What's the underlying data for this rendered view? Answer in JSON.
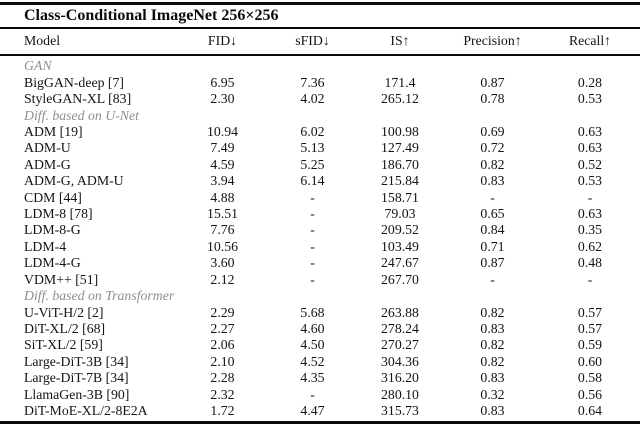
{
  "title": "Class-Conditional ImageNet 256×256",
  "columns": [
    "Model",
    "FID↓",
    "sFID↓",
    "IS↑",
    "Precision↑",
    "Recall↑"
  ],
  "rows": [
    {
      "type": "section",
      "label": "GAN"
    },
    {
      "type": "data",
      "model": "BigGAN-deep [7]",
      "values": [
        "6.95",
        "7.36",
        "171.4",
        "0.87",
        "0.28"
      ]
    },
    {
      "type": "data",
      "model": "StyleGAN-XL [83]",
      "values": [
        "2.30",
        "4.02",
        "265.12",
        "0.78",
        "0.53"
      ]
    },
    {
      "type": "section",
      "label": "Diff. based on U-Net"
    },
    {
      "type": "data",
      "model": "ADM [19]",
      "values": [
        "10.94",
        "6.02",
        "100.98",
        "0.69",
        "0.63"
      ]
    },
    {
      "type": "data",
      "model": "ADM-U",
      "values": [
        "7.49",
        "5.13",
        "127.49",
        "0.72",
        "0.63"
      ]
    },
    {
      "type": "data",
      "model": "ADM-G",
      "values": [
        "4.59",
        "5.25",
        "186.70",
        "0.82",
        "0.52"
      ]
    },
    {
      "type": "data",
      "model": "ADM-G, ADM-U",
      "values": [
        "3.94",
        "6.14",
        "215.84",
        "0.83",
        "0.53"
      ]
    },
    {
      "type": "data",
      "model": "CDM [44]",
      "values": [
        "4.88",
        "-",
        "158.71",
        "-",
        "-"
      ]
    },
    {
      "type": "data",
      "model": "LDM-8 [78]",
      "values": [
        "15.51",
        "-",
        "79.03",
        "0.65",
        "0.63"
      ]
    },
    {
      "type": "data",
      "model": "LDM-8-G",
      "values": [
        "7.76",
        "-",
        "209.52",
        "0.84",
        "0.35"
      ]
    },
    {
      "type": "data",
      "model": "LDM-4",
      "values": [
        "10.56",
        "-",
        "103.49",
        "0.71",
        "0.62"
      ]
    },
    {
      "type": "data",
      "model": "LDM-4-G",
      "values": [
        "3.60",
        "-",
        "247.67",
        "0.87",
        "0.48"
      ]
    },
    {
      "type": "data",
      "model": "VDM++ [51]",
      "values": [
        "2.12",
        "-",
        "267.70",
        "-",
        "-"
      ]
    },
    {
      "type": "section",
      "label": "Diff. based on Transformer"
    },
    {
      "type": "data",
      "model": "U-ViT-H/2 [2]",
      "values": [
        "2.29",
        "5.68",
        "263.88",
        "0.82",
        "0.57"
      ]
    },
    {
      "type": "data",
      "model": "DiT-XL/2 [68]",
      "values": [
        "2.27",
        "4.60",
        "278.24",
        "0.83",
        "0.57"
      ]
    },
    {
      "type": "data",
      "model": "SiT-XL/2 [59]",
      "values": [
        "2.06",
        "4.50",
        "270.27",
        "0.82",
        "0.59"
      ]
    },
    {
      "type": "data",
      "model": "Large-DiT-3B [34]",
      "values": [
        "2.10",
        "4.52",
        "304.36",
        "0.82",
        "0.60"
      ]
    },
    {
      "type": "data",
      "model": "Large-DiT-7B [34]",
      "values": [
        "2.28",
        "4.35",
        "316.20",
        "0.83",
        "0.58"
      ]
    },
    {
      "type": "data",
      "model": "LlamaGen-3B [90]",
      "values": [
        "2.32",
        "-",
        "280.10",
        "0.32",
        "0.56"
      ]
    },
    {
      "type": "data",
      "model": "DiT-MoE-XL/2-8E2A",
      "values": [
        "1.72",
        "4.47",
        "315.73",
        "0.83",
        "0.64"
      ]
    }
  ],
  "colors": {
    "rule": "#0a0a0a",
    "body_text": "#141414",
    "section_text": "#8f8f8f",
    "background": "#ffffff"
  }
}
